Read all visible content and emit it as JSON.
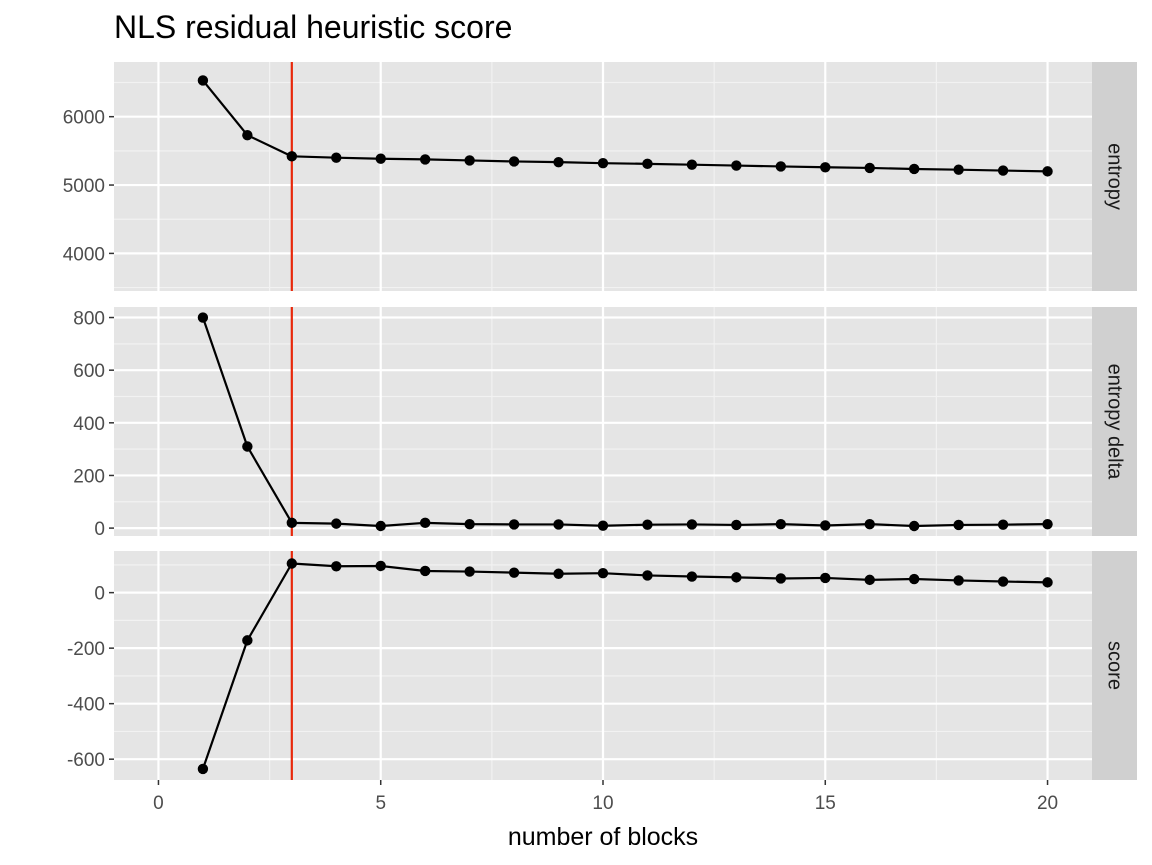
{
  "chart_data": {
    "type": "line",
    "title": "NLS residual heuristic score",
    "xlabel": "number of blocks",
    "ylabel": "",
    "x": [
      1,
      2,
      3,
      4,
      5,
      6,
      7,
      8,
      9,
      10,
      11,
      12,
      13,
      14,
      15,
      16,
      17,
      18,
      19,
      20
    ],
    "xlim": [
      -1,
      21
    ],
    "x_ticks": [
      0,
      5,
      10,
      15,
      20
    ],
    "x_tick_labels": [
      "0",
      "5",
      "10",
      "15",
      "20"
    ],
    "vline": {
      "x": 3,
      "color": "#e8280b"
    },
    "series_color": "#000000",
    "panel_background": "#e5e5e5",
    "strip_background": "#d0d0d0",
    "grid": true,
    "panels": [
      {
        "strip": "entropy",
        "ylim": [
          3450,
          6800
        ],
        "y_ticks": [
          4000,
          5000,
          6000
        ],
        "y_tick_labels": [
          "4000",
          "5000",
          "6000"
        ],
        "values": [
          6530,
          5730,
          5420,
          5400,
          5385,
          5375,
          5360,
          5345,
          5335,
          5320,
          5310,
          5298,
          5285,
          5272,
          5260,
          5250,
          5235,
          5225,
          5212,
          5200
        ]
      },
      {
        "strip": "entropy delta",
        "ylim": [
          -30,
          840
        ],
        "y_ticks": [
          0,
          200,
          400,
          600,
          800
        ],
        "y_tick_labels": [
          "0",
          "200",
          "400",
          "600",
          "800"
        ],
        "values": [
          800,
          310,
          20,
          17,
          8,
          20,
          15,
          14,
          14,
          9,
          13,
          14,
          12,
          15,
          10,
          15,
          8,
          12,
          13,
          15
        ]
      },
      {
        "strip": "score",
        "ylim": [
          -675,
          150
        ],
        "y_ticks": [
          -600,
          -400,
          -200,
          0
        ],
        "y_tick_labels": [
          "-600",
          "-400",
          "-200",
          "0"
        ],
        "values": [
          -635,
          -172,
          105,
          95,
          96,
          78,
          76,
          72,
          68,
          70,
          62,
          58,
          55,
          51,
          53,
          46,
          49,
          44,
          40,
          37
        ]
      }
    ]
  }
}
